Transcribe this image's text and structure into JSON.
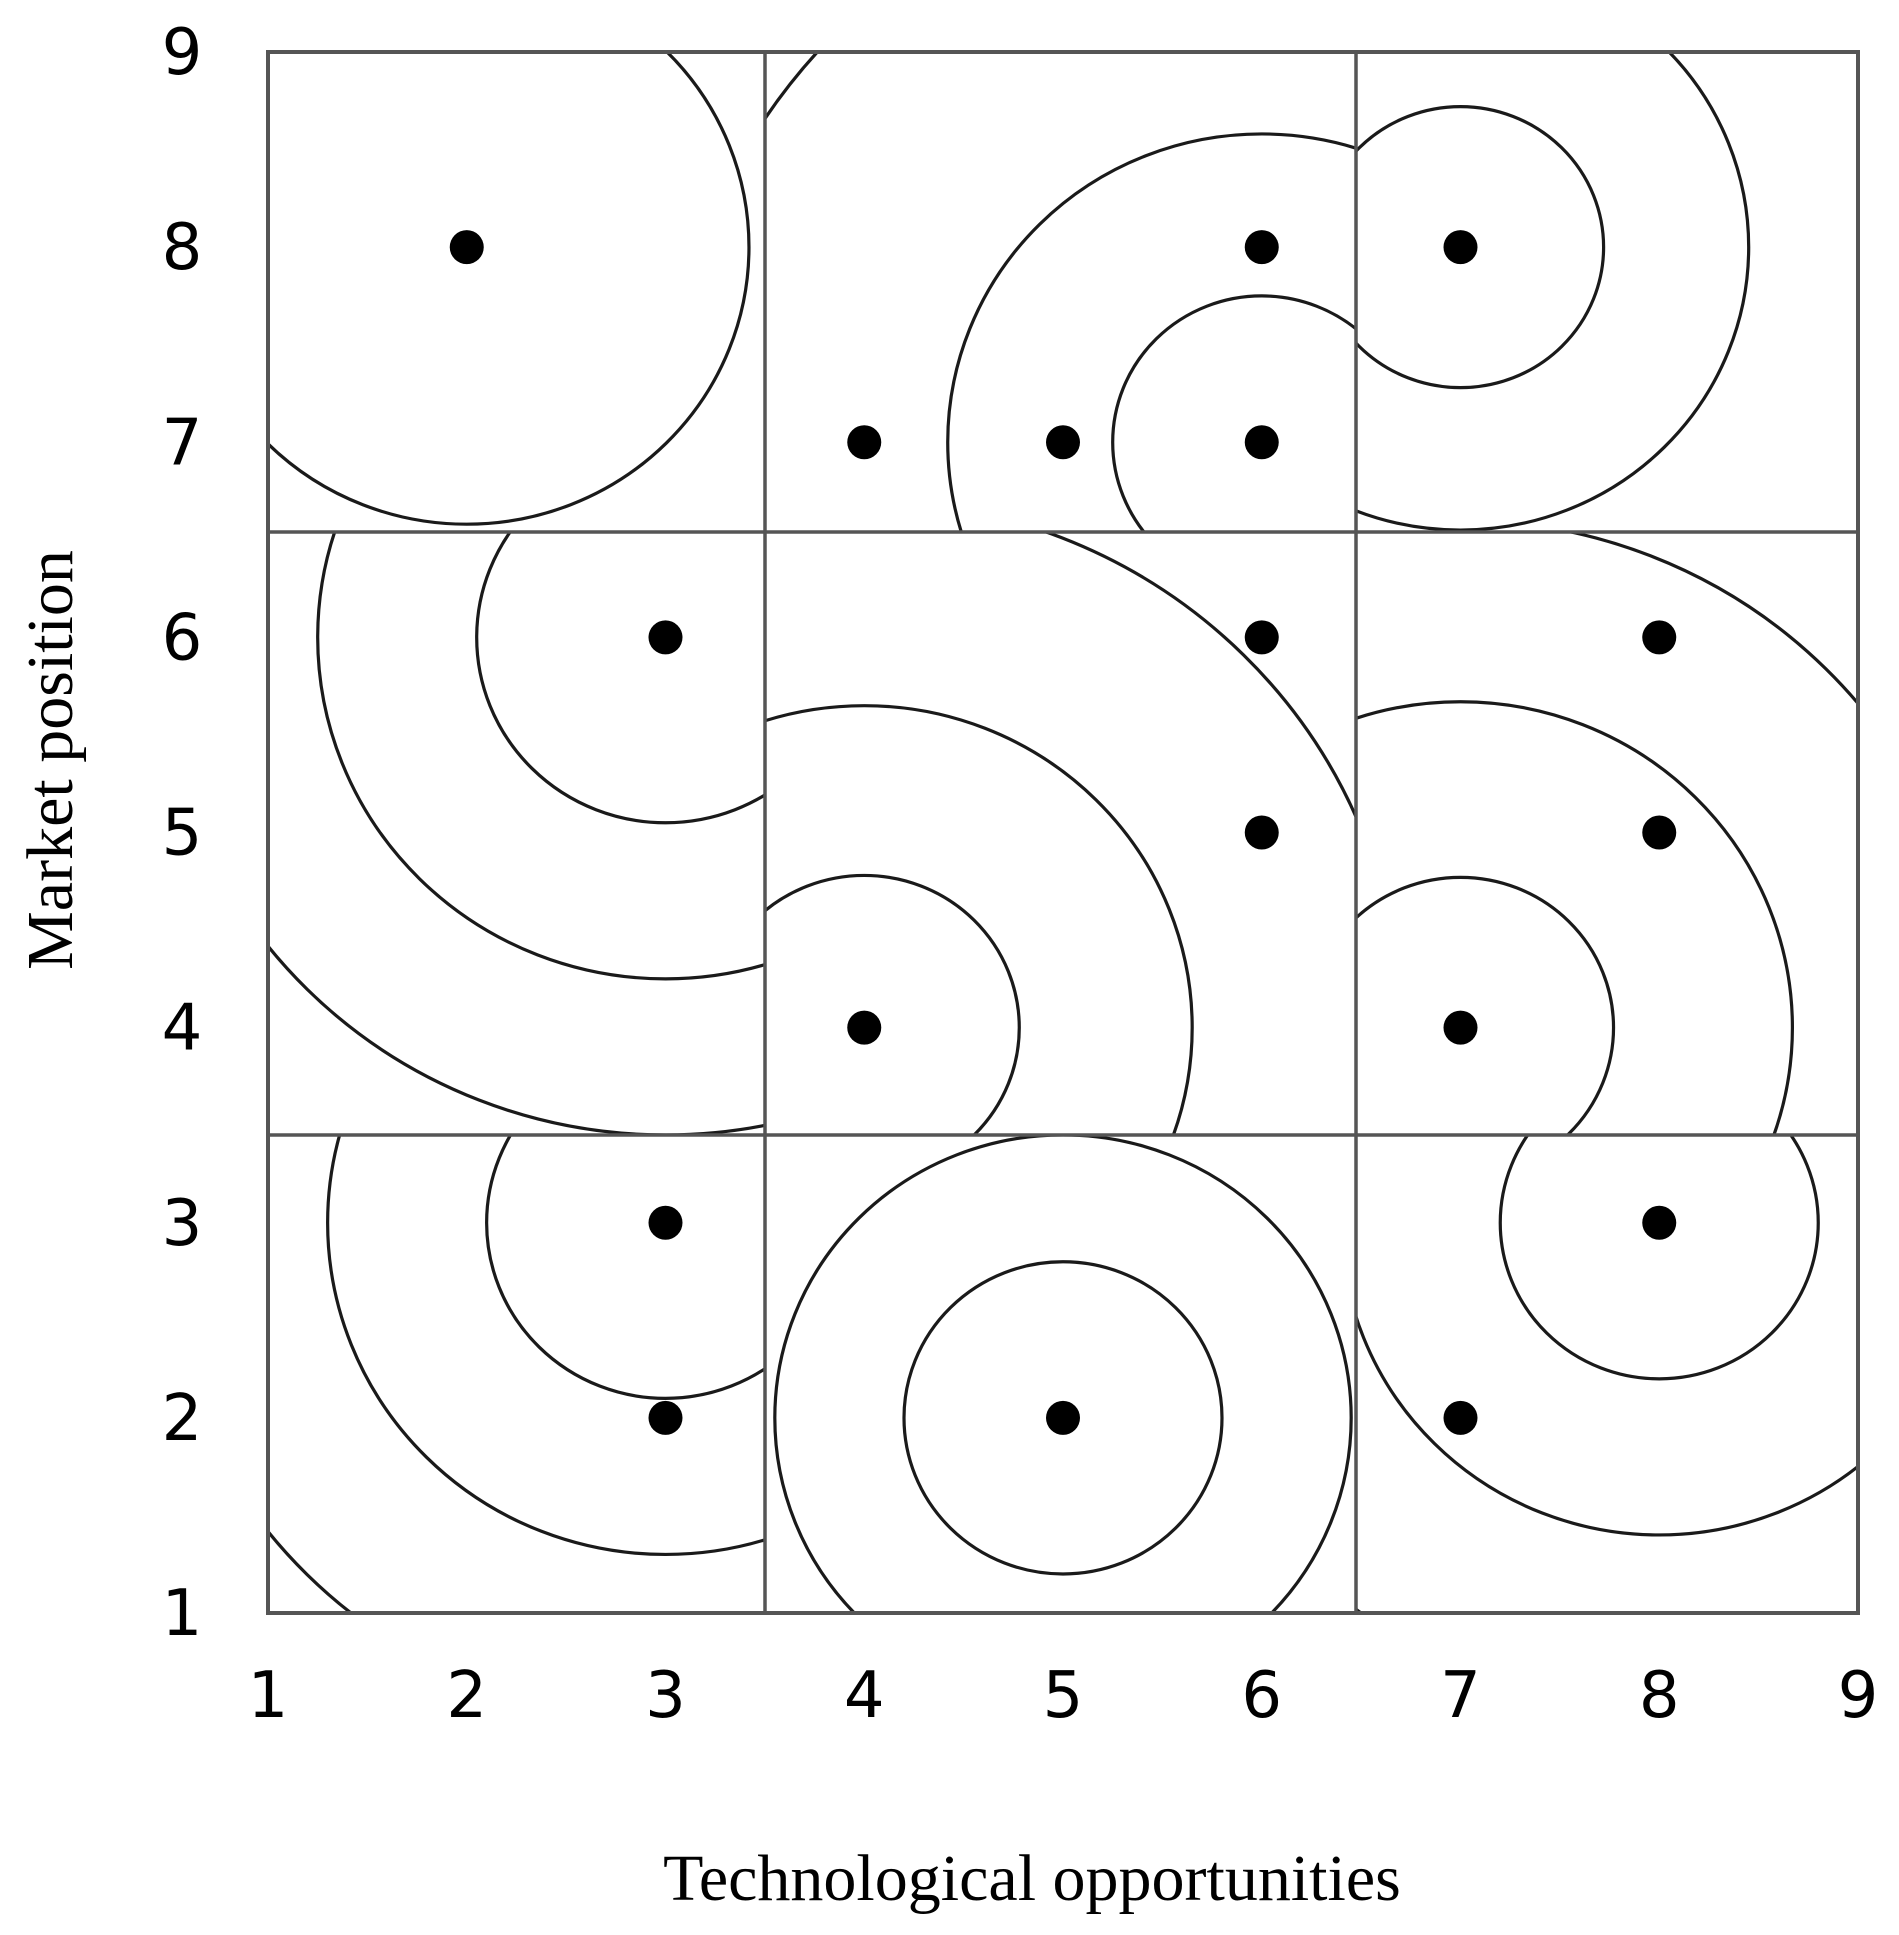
{
  "chart_data": {
    "type": "scatter",
    "xlabel": "Technological opportunities",
    "ylabel": "Market position",
    "xlim": [
      1,
      9
    ],
    "ylim": [
      1,
      9
    ],
    "x_ticks": [
      "1",
      "2",
      "3",
      "4",
      "5",
      "6",
      "7",
      "8",
      "9"
    ],
    "y_ticks": [
      "1",
      "2",
      "3",
      "4",
      "5",
      "6",
      "7",
      "8",
      "9"
    ],
    "grid": "3x3 cells divided at x = 3.5, 6.5 and y = 3.5, 6.5",
    "points": [
      {
        "x": 2,
        "y": 8
      },
      {
        "x": 4,
        "y": 7
      },
      {
        "x": 5,
        "y": 7
      },
      {
        "x": 6,
        "y": 7
      },
      {
        "x": 6,
        "y": 8
      },
      {
        "x": 7,
        "y": 8
      },
      {
        "x": 3,
        "y": 6
      },
      {
        "x": 4,
        "y": 4
      },
      {
        "x": 6,
        "y": 5
      },
      {
        "x": 6,
        "y": 6
      },
      {
        "x": 7,
        "y": 4
      },
      {
        "x": 8,
        "y": 5
      },
      {
        "x": 8,
        "y": 6
      },
      {
        "x": 3,
        "y": 2
      },
      {
        "x": 3,
        "y": 3
      },
      {
        "x": 5,
        "y": 2
      },
      {
        "x": 7,
        "y": 2
      },
      {
        "x": 8,
        "y": 3
      }
    ],
    "contours": [
      {
        "cx": 2.0,
        "cy": 8.0,
        "radii": [
          1.42,
          2.6
        ]
      },
      {
        "cx": 6.0,
        "cy": 7.0,
        "radii": [
          0.75,
          1.58,
          3.0
        ]
      },
      {
        "cx": 7.0,
        "cy": 8.0,
        "radii": [
          0.72,
          1.45,
          2.95
        ]
      },
      {
        "cx": 3.0,
        "cy": 6.0,
        "radii": [
          0.95,
          1.75,
          2.55
        ]
      },
      {
        "cx": 4.0,
        "cy": 4.0,
        "radii": [
          0.78,
          1.65,
          2.7
        ]
      },
      {
        "cx": 7.0,
        "cy": 4.0,
        "radii": [
          0.77,
          1.67,
          2.6
        ]
      },
      {
        "cx": 3.0,
        "cy": 3.0,
        "radii": [
          0.9,
          1.7,
          2.55
        ]
      },
      {
        "cx": 5.0,
        "cy": 2.0,
        "radii": [
          0.8,
          1.45
        ]
      },
      {
        "cx": 8.0,
        "cy": 3.0,
        "radii": [
          0.8,
          1.6,
          2.5
        ]
      }
    ]
  }
}
